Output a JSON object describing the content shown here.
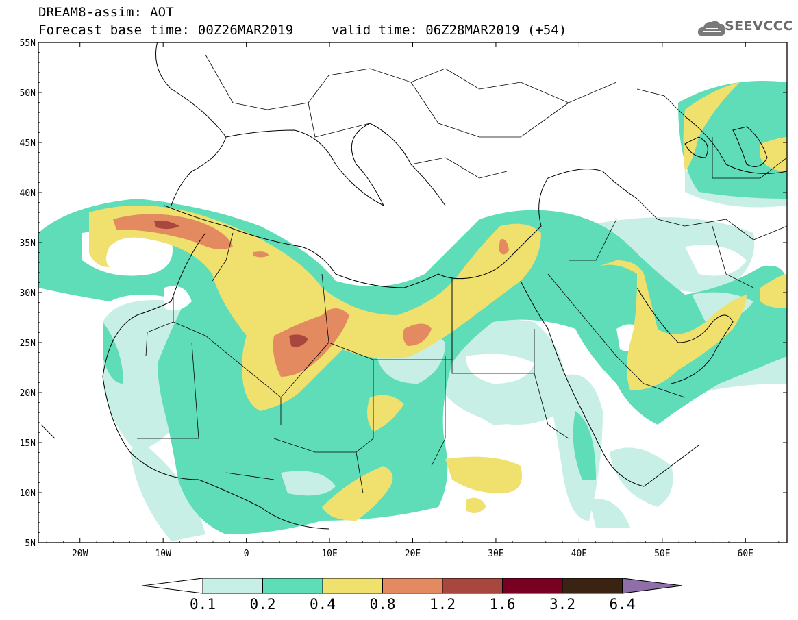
{
  "header": {
    "title": "DREAM8-assim: AOT",
    "base_time": "Forecast base time: 00Z26MAR2019",
    "valid_time": "valid time: 06Z28MAR2019 (+54)",
    "logo_text": "SEEVCCC"
  },
  "map": {
    "lon_range": [
      -25,
      65
    ],
    "lat_range": [
      5,
      55
    ],
    "lat_labels": [
      "55N",
      "50N",
      "45N",
      "40N",
      "35N",
      "30N",
      "25N",
      "20N",
      "15N",
      "10N",
      "5N"
    ],
    "lon_labels": [
      "20W",
      "10W",
      "0",
      "10E",
      "20E",
      "30E",
      "40E",
      "50E",
      "60E"
    ]
  },
  "colorbar": {
    "levels": [
      "0.1",
      "0.2",
      "0.4",
      "0.8",
      "1.2",
      "1.6",
      "3.2",
      "6.4"
    ],
    "colors": [
      "#ffffff",
      "#c7efe6",
      "#5fdcb8",
      "#f0e06e",
      "#e38a60",
      "#a8473d",
      "#7a0022",
      "#3a2312",
      "#8f6fa8"
    ]
  }
}
